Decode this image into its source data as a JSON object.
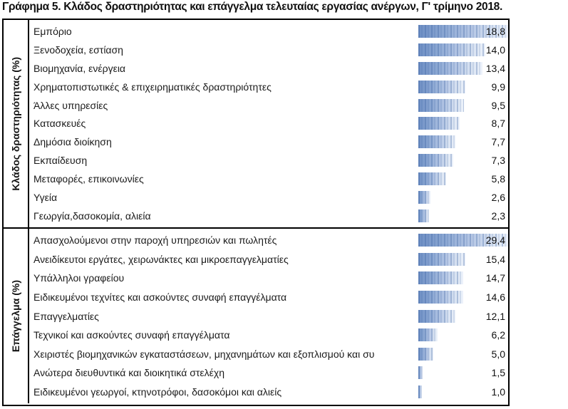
{
  "title": "Γράφημα 5. Κλάδος δραστηριότητας και επάγγελμα τελευταίας εργασίας ανέργων, Γ' τρίμηνο 2018.",
  "chart_data": {
    "type": "bar",
    "orientation": "horizontal",
    "value_format": "comma-decimal, one decimal place",
    "legend": "none",
    "grid": "off",
    "bar_style": {
      "gradient_start": "#6e8fc4",
      "gradient_end": "#eef3fb",
      "texture": "vertical-stripes"
    },
    "frame_color": "#000000",
    "sections": [
      {
        "axis_label": "Κλάδος δραστηριότητας (%)",
        "axis_max": 18.8,
        "rows": [
          {
            "label": "Εμπόριο",
            "value": 18.8,
            "display": "18,8"
          },
          {
            "label": "Ξενοδοχεία, εστίαση",
            "value": 14.0,
            "display": "14,0"
          },
          {
            "label": "Βιομηχανία, ενέργεια",
            "value": 13.4,
            "display": "13,4"
          },
          {
            "label": "Χρηματοπιστωτικές & επιχειρηματικές δραστηριότητες",
            "value": 9.9,
            "display": "9,9"
          },
          {
            "label": "Άλλες υπηρεσίες",
            "value": 9.5,
            "display": "9,5"
          },
          {
            "label": "Κατασκευές",
            "value": 8.7,
            "display": "8,7"
          },
          {
            "label": "Δημόσια διοίκηση",
            "value": 7.7,
            "display": "7,7"
          },
          {
            "label": "Εκπαίδευση",
            "value": 7.3,
            "display": "7,3"
          },
          {
            "label": "Μεταφορές, επικοινωνίες",
            "value": 5.8,
            "display": "5,8"
          },
          {
            "label": "Υγεία",
            "value": 2.6,
            "display": "2,6"
          },
          {
            "label": "Γεωργία,δασοκομία, αλιεία",
            "value": 2.3,
            "display": "2,3"
          }
        ]
      },
      {
        "axis_label": "Επάγγελμα (%)",
        "axis_max": 29.4,
        "rows": [
          {
            "label": "Απασχολούμενοι στην παροχή υπηρεσιών και πωλητές",
            "value": 29.4,
            "display": "29,4"
          },
          {
            "label": "Ανειδίκευτοι εργάτες, χειρωνάκτες και μικροεπαγγελματίες",
            "value": 15.4,
            "display": "15,4"
          },
          {
            "label": "Υπάλληλοι γραφείου",
            "value": 14.7,
            "display": "14,7"
          },
          {
            "label": "Ειδικευμένοι τεχνίτες και ασκούντες συναφή επαγγέλματα",
            "value": 14.6,
            "display": "14,6"
          },
          {
            "label": "Επαγγελματίες",
            "value": 12.1,
            "display": "12,1"
          },
          {
            "label": "Τεχνικοί και ασκούντες συναφή επαγγέλματα",
            "value": 6.2,
            "display": "6,2"
          },
          {
            "label": "Χειριστές βιομηχανικών εγκαταστάσεων, μηχανημάτων και εξοπλισμού και συ",
            "value": 5.0,
            "display": "5,0"
          },
          {
            "label": "Ανώτερα διευθυντικά και διοικητικά στελέχη",
            "value": 1.5,
            "display": "1,5"
          },
          {
            "label": "Ειδικευμένοι γεωργοί, κτηνοτρόφοι, δασοκόμοι και αλιείς",
            "value": 1.0,
            "display": "1,0"
          }
        ]
      }
    ]
  }
}
